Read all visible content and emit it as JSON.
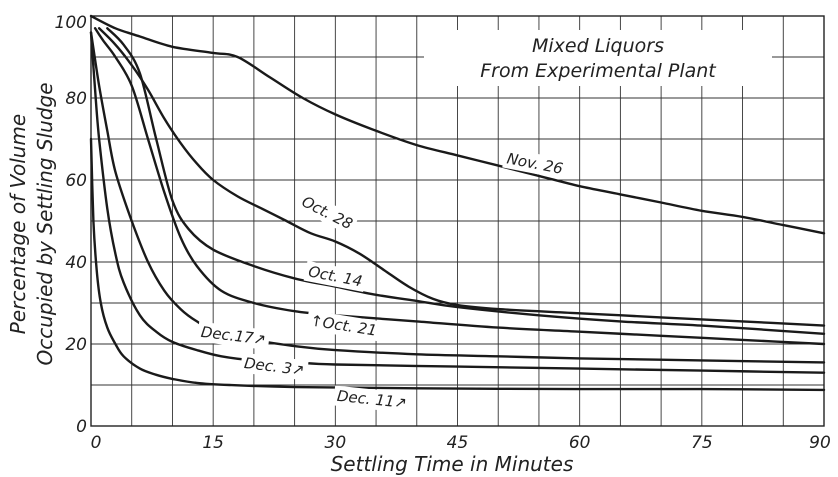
{
  "chart_data": {
    "type": "line",
    "title": [
      "Mixed Liquors",
      "From Experimental Plant"
    ],
    "xlabel": "Settling Time in Minutes",
    "ylabel": [
      "Percentage of Volume",
      "Occupied by Settling Sludge"
    ],
    "xlim": [
      0,
      90
    ],
    "ylim": [
      0,
      100
    ],
    "x_ticks": [
      0,
      15,
      30,
      45,
      60,
      75,
      90
    ],
    "x_tick_labels": [
      "0",
      "15",
      "30",
      "45",
      "60",
      "75",
      "90"
    ],
    "y_ticks": [
      0,
      20,
      40,
      60,
      80,
      100
    ],
    "y_tick_labels": [
      "0",
      "20",
      "40",
      "60",
      "80",
      "100"
    ],
    "grid": true,
    "series": [
      {
        "name": "Nov. 26",
        "points": [
          [
            0,
            100
          ],
          [
            3,
            97
          ],
          [
            6,
            95
          ],
          [
            10,
            92.5
          ],
          [
            15,
            91
          ],
          [
            18,
            90
          ],
          [
            22,
            85
          ],
          [
            26,
            80
          ],
          [
            30,
            76
          ],
          [
            35,
            72
          ],
          [
            40,
            68.5
          ],
          [
            45,
            66
          ],
          [
            50,
            63.5
          ],
          [
            55,
            61
          ],
          [
            60,
            58.5
          ],
          [
            65,
            56.5
          ],
          [
            70,
            54.5
          ],
          [
            75,
            52.5
          ],
          [
            80,
            51
          ],
          [
            85,
            49
          ],
          [
            90,
            47
          ]
        ]
      },
      {
        "name": "Oct. 28",
        "points": [
          [
            1,
            97
          ],
          [
            3,
            93
          ],
          [
            5,
            88
          ],
          [
            7,
            82
          ],
          [
            9,
            75
          ],
          [
            11,
            69
          ],
          [
            13,
            64
          ],
          [
            15,
            60
          ],
          [
            18,
            56
          ],
          [
            21,
            53
          ],
          [
            24,
            50
          ],
          [
            27,
            47
          ],
          [
            30,
            45
          ],
          [
            33,
            42
          ],
          [
            36,
            38
          ],
          [
            39,
            34
          ],
          [
            42,
            31
          ],
          [
            45,
            29.5
          ],
          [
            50,
            28.5
          ],
          [
            60,
            27.5
          ],
          [
            70,
            26.5
          ],
          [
            80,
            25.5
          ],
          [
            90,
            24.5
          ]
        ]
      },
      {
        "name": "Oct. 14",
        "points": [
          [
            2,
            97
          ],
          [
            4,
            93
          ],
          [
            6,
            86
          ],
          [
            8,
            70
          ],
          [
            10,
            55
          ],
          [
            12,
            48
          ],
          [
            15,
            43
          ],
          [
            20,
            39
          ],
          [
            25,
            36
          ],
          [
            30,
            34
          ],
          [
            35,
            32
          ],
          [
            40,
            30.5
          ],
          [
            45,
            29
          ],
          [
            55,
            27
          ],
          [
            65,
            25.5
          ],
          [
            75,
            24.5
          ],
          [
            90,
            22.5
          ]
        ]
      },
      {
        "name": "Oct. 21",
        "points": [
          [
            0.5,
            97
          ],
          [
            1.5,
            94
          ],
          [
            3,
            90
          ],
          [
            5,
            83
          ],
          [
            7,
            70
          ],
          [
            9,
            57
          ],
          [
            11,
            46
          ],
          [
            13,
            39
          ],
          [
            16,
            33
          ],
          [
            20,
            30
          ],
          [
            25,
            28
          ],
          [
            30,
            27
          ],
          [
            40,
            25.5
          ],
          [
            50,
            24
          ],
          [
            60,
            23
          ],
          [
            70,
            22
          ],
          [
            80,
            21
          ],
          [
            90,
            20
          ]
        ]
      },
      {
        "name": "Dec. 17",
        "points": [
          [
            0,
            96
          ],
          [
            1,
            83
          ],
          [
            2,
            72
          ],
          [
            3,
            62
          ],
          [
            5,
            50
          ],
          [
            7,
            40
          ],
          [
            9,
            33
          ],
          [
            11,
            28.5
          ],
          [
            13,
            25.5
          ],
          [
            15,
            23.5
          ],
          [
            20,
            21
          ],
          [
            25,
            19.5
          ],
          [
            30,
            18.5
          ],
          [
            40,
            17.5
          ],
          [
            50,
            17
          ],
          [
            60,
            16.5
          ],
          [
            75,
            16
          ],
          [
            90,
            15.5
          ]
        ]
      },
      {
        "name": "Dec. 3",
        "points": [
          [
            0,
            96
          ],
          [
            0.5,
            82
          ],
          [
            1,
            70
          ],
          [
            2,
            53
          ],
          [
            3,
            42
          ],
          [
            4,
            35
          ],
          [
            6,
            27
          ],
          [
            8,
            23
          ],
          [
            10,
            20.5
          ],
          [
            13,
            18.5
          ],
          [
            16,
            17
          ],
          [
            20,
            16
          ],
          [
            25,
            15.5
          ],
          [
            30,
            15
          ],
          [
            45,
            14.5
          ],
          [
            60,
            14
          ],
          [
            75,
            13.5
          ],
          [
            90,
            13
          ]
        ]
      },
      {
        "name": "Dec. 11",
        "points": [
          [
            0,
            70
          ],
          [
            0.3,
            50
          ],
          [
            0.7,
            38
          ],
          [
            1.2,
            30
          ],
          [
            2,
            24
          ],
          [
            3,
            20
          ],
          [
            4,
            17
          ],
          [
            6,
            14
          ],
          [
            8,
            12.5
          ],
          [
            10,
            11.5
          ],
          [
            13,
            10.5
          ],
          [
            17,
            10
          ],
          [
            25,
            9.5
          ],
          [
            40,
            9.2
          ],
          [
            60,
            9
          ],
          [
            75,
            9
          ],
          [
            90,
            8.8
          ]
        ]
      }
    ],
    "series_labels": [
      {
        "text": "Nov. 26",
        "x": 54.5,
        "y": 64,
        "angle": 11
      },
      {
        "text": "Oct. 28",
        "x": 29,
        "y": 52,
        "angle": 27
      },
      {
        "text": "Oct. 14",
        "x": 30,
        "y": 36.5,
        "angle": 11
      },
      {
        "text": "↑Oct. 21",
        "x": 31,
        "y": 24.5,
        "angle": 9
      },
      {
        "text": "Dec.17↗",
        "x": 17.5,
        "y": 22,
        "angle": 7
      },
      {
        "text": "Dec. 3↗",
        "x": 22.5,
        "y": 14.5,
        "angle": 7
      },
      {
        "text": "Dec. 11↗",
        "x": 34.5,
        "y": 6.5,
        "angle": 6
      }
    ]
  }
}
